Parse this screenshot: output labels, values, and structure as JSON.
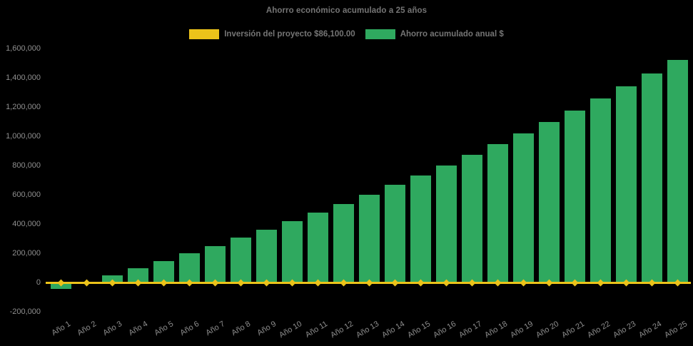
{
  "colors": {
    "background": "#000000",
    "bar_green": "#2fa95f",
    "line_yellow": "#ecc31a",
    "title_text": "#757575",
    "tick_text": "#8f8f8f"
  },
  "chart_data": {
    "type": "bar",
    "title": "Ahorro económico acumulado a 25 años",
    "xlabel": "",
    "ylabel": "",
    "ylim": [
      -200000,
      1600000
    ],
    "ytick_step": 200000,
    "grid": false,
    "legend_position": "top",
    "background": "#000000",
    "categories": [
      "Año 1",
      "Año 2",
      "Año 3",
      "Año 4",
      "Año 5",
      "Año 6",
      "Año 7",
      "Año 8",
      "Año 9",
      "Año 10",
      "Año 11",
      "Año 12",
      "Año 13",
      "Año 14",
      "Año 15",
      "Año 16",
      "Año 17",
      "Año 18",
      "Año 19",
      "Año 20",
      "Año 21",
      "Año 22",
      "Año 23",
      "Año 24",
      "Año 25"
    ],
    "series": [
      {
        "name": "Inversión del proyecto $86,100.00",
        "type": "line",
        "color": "#ecc31a",
        "marker": "diamond",
        "note": "flat baseline drawn at y = 0 (break-even) with a marker at every year",
        "values": [
          0,
          0,
          0,
          0,
          0,
          0,
          0,
          0,
          0,
          0,
          0,
          0,
          0,
          0,
          0,
          0,
          0,
          0,
          0,
          0,
          0,
          0,
          0,
          0,
          0
        ]
      },
      {
        "name": "Ahorro acumulado anual $",
        "type": "bar",
        "color": "#2fa95f",
        "values": [
          -42000,
          3000,
          50000,
          98000,
          148000,
          199000,
          251000,
          306000,
          361000,
          419000,
          478000,
          539000,
          602000,
          667000,
          733000,
          802000,
          872000,
          945000,
          1020000,
          1098000,
          1177000,
          1259000,
          1343000,
          1430000,
          1520000
        ]
      }
    ]
  }
}
